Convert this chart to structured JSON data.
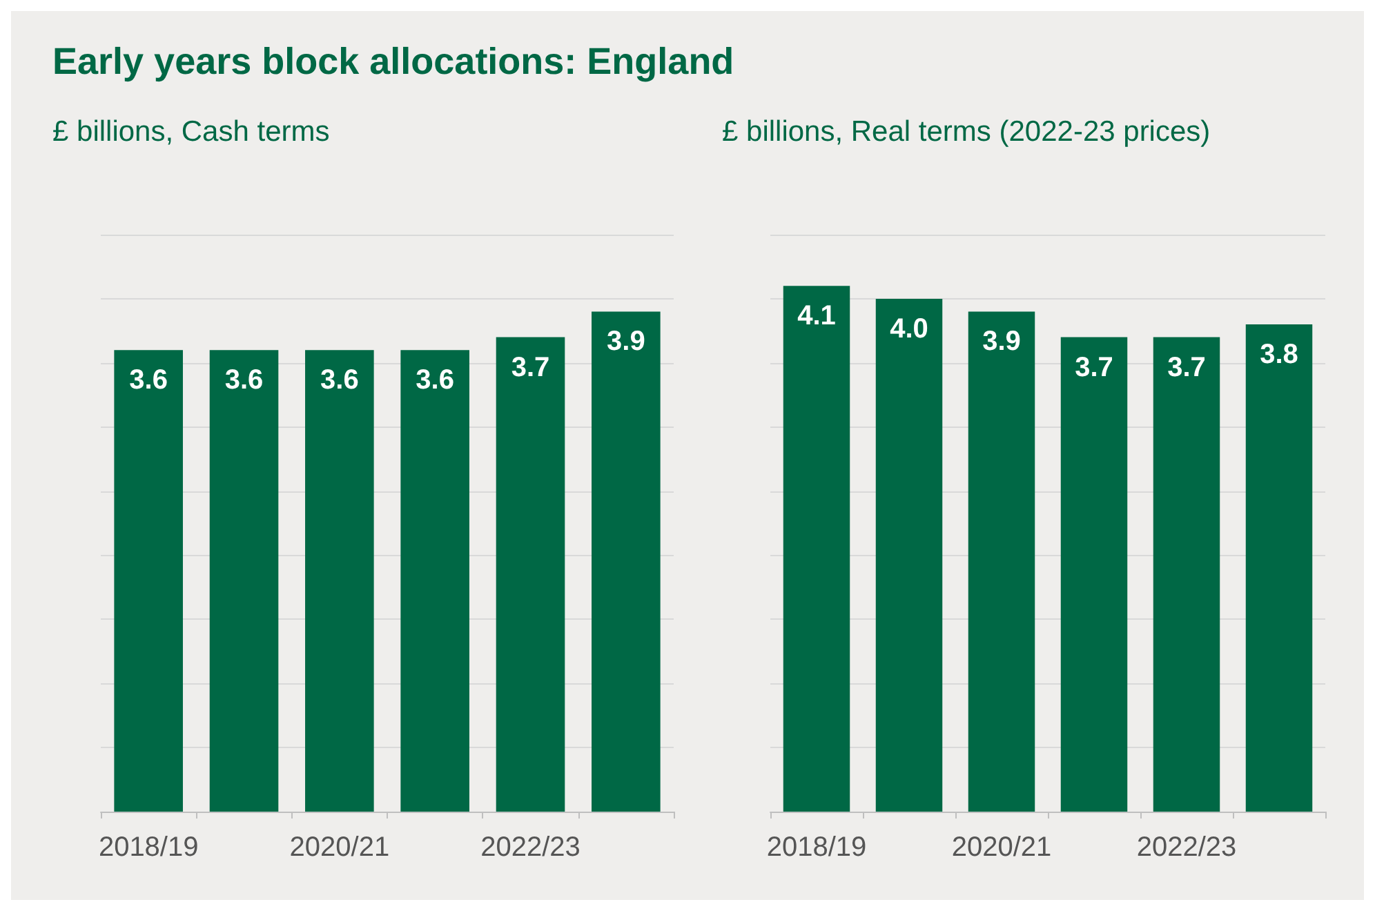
{
  "chart_data": [
    {
      "type": "bar",
      "title": "Early years block allocations: England",
      "subtitle": "£ billions, Cash terms",
      "categories": [
        "2018/19",
        null,
        "2020/21",
        null,
        "2022/23",
        null
      ],
      "values": [
        3.6,
        3.6,
        3.6,
        3.6,
        3.7,
        3.9
      ],
      "color": "#006845",
      "ylim": [
        0,
        4.5
      ],
      "yticks": [
        0,
        0.5,
        1,
        1.5,
        2,
        2.5,
        3,
        3.5,
        4,
        4.5
      ],
      "tick_labels": "x",
      "grid": "y",
      "value_labels": [
        "3.6",
        "3.6",
        "3.6",
        "3.6",
        "3.7",
        "3.9"
      ]
    },
    {
      "type": "bar",
      "subtitle": "£ billions, Real terms (2022-23 prices)",
      "categories": [
        "2018/19",
        null,
        "2020/21",
        null,
        "2022/23",
        null
      ],
      "values": [
        4.1,
        4.0,
        3.9,
        3.7,
        3.7,
        3.8
      ],
      "color": "#006845",
      "ylim": [
        0,
        4.5
      ],
      "yticks": [
        0,
        0.5,
        1,
        1.5,
        2,
        2.5,
        3,
        3.5,
        4,
        4.5
      ],
      "tick_labels": "x",
      "grid": "y",
      "value_labels": [
        "4.1",
        "4.0",
        "3.9",
        "3.7",
        "3.7",
        "3.8"
      ]
    }
  ]
}
